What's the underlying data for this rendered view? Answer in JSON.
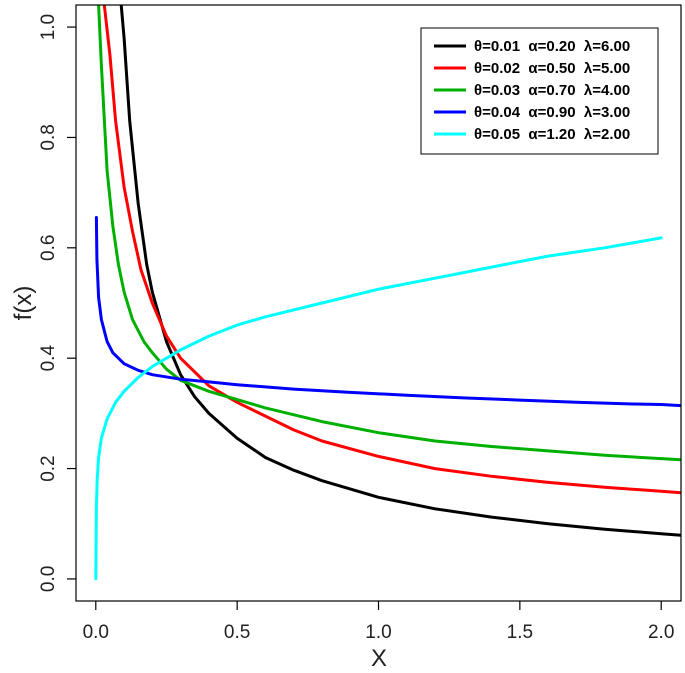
{
  "chart_data": {
    "type": "line",
    "title": "",
    "xlabel": "X",
    "ylabel": "f(x)",
    "xlim": [
      -0.07,
      2.07
    ],
    "ylim": [
      -0.04,
      1.04
    ],
    "xticks": [
      "0.0",
      "0.5",
      "1.0",
      "1.5",
      "2.0"
    ],
    "yticks": [
      "0.0",
      "0.2",
      "0.4",
      "0.6",
      "0.8",
      "1.0"
    ],
    "grid": false,
    "legend_position": "top-right",
    "series": [
      {
        "name": "θ=0.01  α=0.20  λ=6.00",
        "color": "#000000",
        "x": [
          0.09,
          0.1,
          0.12,
          0.15,
          0.18,
          0.2,
          0.25,
          0.3,
          0.35,
          0.4,
          0.5,
          0.6,
          0.7,
          0.8,
          1.0,
          1.2,
          1.4,
          1.6,
          1.8,
          2.0,
          2.07
        ],
        "y": [
          1.04,
          0.98,
          0.83,
          0.68,
          0.57,
          0.52,
          0.43,
          0.37,
          0.33,
          0.3,
          0.255,
          0.22,
          0.197,
          0.178,
          0.148,
          0.127,
          0.112,
          0.1,
          0.09,
          0.082,
          0.079
        ]
      },
      {
        "name": "θ=0.02  α=0.50  λ=5.00",
        "color": "#ff0000",
        "x": [
          0.03,
          0.05,
          0.07,
          0.1,
          0.13,
          0.16,
          0.2,
          0.25,
          0.3,
          0.4,
          0.5,
          0.6,
          0.7,
          0.8,
          1.0,
          1.2,
          1.4,
          1.6,
          1.8,
          2.0,
          2.07
        ],
        "y": [
          1.04,
          0.95,
          0.83,
          0.71,
          0.63,
          0.56,
          0.5,
          0.44,
          0.4,
          0.35,
          0.32,
          0.295,
          0.27,
          0.25,
          0.222,
          0.2,
          0.186,
          0.175,
          0.166,
          0.159,
          0.156
        ]
      },
      {
        "name": "θ=0.03  α=0.70  λ=4.00",
        "color": "#00b000",
        "x": [
          0.01,
          0.02,
          0.04,
          0.06,
          0.08,
          0.1,
          0.13,
          0.17,
          0.2,
          0.25,
          0.3,
          0.4,
          0.5,
          0.6,
          0.8,
          1.0,
          1.2,
          1.4,
          1.6,
          1.8,
          2.0,
          2.07
        ],
        "y": [
          1.04,
          0.93,
          0.74,
          0.64,
          0.57,
          0.52,
          0.47,
          0.43,
          0.41,
          0.38,
          0.36,
          0.34,
          0.325,
          0.31,
          0.285,
          0.265,
          0.25,
          0.24,
          0.232,
          0.224,
          0.218,
          0.216
        ]
      },
      {
        "name": "θ=0.04  α=0.90  λ=3.00",
        "color": "#0000ff",
        "x": [
          0.002,
          0.004,
          0.01,
          0.02,
          0.04,
          0.06,
          0.1,
          0.15,
          0.2,
          0.3,
          0.4,
          0.5,
          0.7,
          0.9,
          1.1,
          1.3,
          1.5,
          1.7,
          1.9,
          2.0,
          2.07
        ],
        "y": [
          0.655,
          0.58,
          0.51,
          0.47,
          0.43,
          0.41,
          0.39,
          0.378,
          0.37,
          0.362,
          0.357,
          0.352,
          0.344,
          0.338,
          0.333,
          0.328,
          0.324,
          0.32,
          0.317,
          0.316,
          0.314
        ]
      },
      {
        "name": "θ=0.05  α=1.20  λ=2.00",
        "color": "#00ffff",
        "x": [
          0.0,
          0.002,
          0.005,
          0.01,
          0.02,
          0.04,
          0.07,
          0.1,
          0.15,
          0.2,
          0.3,
          0.4,
          0.5,
          0.6,
          0.8,
          1.0,
          1.2,
          1.4,
          1.6,
          1.8,
          2.0
        ],
        "y": [
          0.0,
          0.13,
          0.18,
          0.22,
          0.255,
          0.29,
          0.32,
          0.34,
          0.365,
          0.385,
          0.415,
          0.44,
          0.46,
          0.475,
          0.5,
          0.525,
          0.545,
          0.565,
          0.585,
          0.6,
          0.618
        ]
      }
    ]
  }
}
